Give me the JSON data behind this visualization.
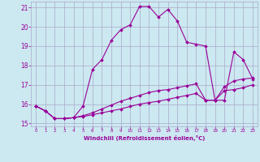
{
  "xlabel": "Windchill (Refroidissement éolien,°C)",
  "xlim": [
    -0.5,
    23.5
  ],
  "ylim": [
    14.85,
    21.3
  ],
  "yticks": [
    15,
    16,
    17,
    18,
    19,
    20,
    21
  ],
  "xticks": [
    0,
    1,
    2,
    3,
    4,
    5,
    6,
    7,
    8,
    9,
    10,
    11,
    12,
    13,
    14,
    15,
    16,
    17,
    18,
    19,
    20,
    21,
    22,
    23
  ],
  "background_color": "#cce8f0",
  "grid_color": "#aaaacc",
  "line_color": "#990099",
  "line1_x": [
    0,
    1,
    2,
    3,
    4,
    5,
    6,
    7,
    8,
    9,
    10,
    11,
    12,
    13,
    14,
    15,
    16,
    17,
    18,
    19,
    20,
    21,
    22,
    23
  ],
  "line1_y": [
    15.9,
    15.65,
    15.25,
    15.25,
    15.3,
    15.9,
    17.8,
    18.3,
    19.3,
    19.85,
    20.1,
    21.05,
    21.05,
    20.5,
    20.9,
    20.3,
    19.2,
    19.1,
    19.0,
    16.2,
    16.2,
    18.7,
    18.3,
    17.3
  ],
  "line2_x": [
    0,
    1,
    2,
    3,
    4,
    5,
    6,
    7,
    8,
    9,
    10,
    11,
    12,
    13,
    14,
    15,
    16,
    17,
    18,
    19,
    20,
    21,
    22,
    23
  ],
  "line2_y": [
    15.9,
    15.65,
    15.25,
    15.25,
    15.3,
    15.4,
    15.55,
    15.75,
    15.95,
    16.15,
    16.3,
    16.45,
    16.6,
    16.7,
    16.75,
    16.85,
    16.95,
    17.05,
    16.2,
    16.2,
    16.9,
    17.2,
    17.3,
    17.35
  ],
  "line3_x": [
    0,
    1,
    2,
    3,
    4,
    5,
    6,
    7,
    8,
    9,
    10,
    11,
    12,
    13,
    14,
    15,
    16,
    17,
    18,
    19,
    20,
    21,
    22,
    23
  ],
  "line3_y": [
    15.9,
    15.65,
    15.25,
    15.25,
    15.3,
    15.36,
    15.45,
    15.55,
    15.65,
    15.75,
    15.88,
    16.0,
    16.08,
    16.15,
    16.25,
    16.35,
    16.45,
    16.55,
    16.2,
    16.2,
    16.7,
    16.75,
    16.85,
    17.0
  ]
}
